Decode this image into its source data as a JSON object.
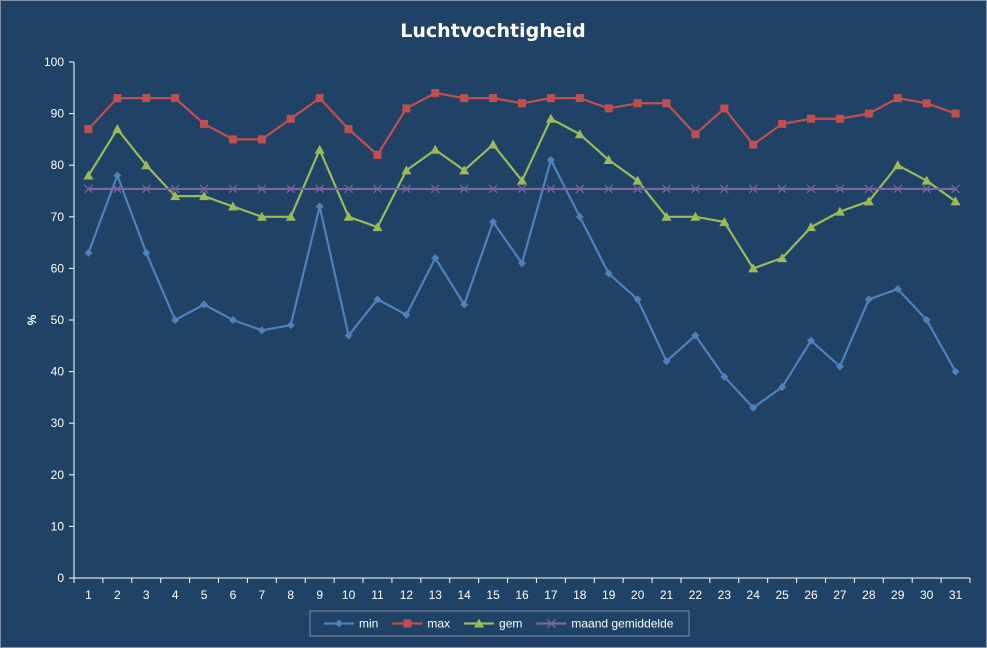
{
  "chart_data": {
    "type": "line",
    "title": "Luchtvochtigheid",
    "xlabel": "",
    "ylabel": "%",
    "ylim": [
      0,
      100
    ],
    "yticks": [
      0,
      10,
      20,
      30,
      40,
      50,
      60,
      70,
      80,
      90,
      100
    ],
    "categories": [
      "1",
      "2",
      "3",
      "4",
      "5",
      "6",
      "7",
      "8",
      "9",
      "10",
      "11",
      "12",
      "13",
      "14",
      "15",
      "16",
      "17",
      "18",
      "19",
      "20",
      "21",
      "22",
      "23",
      "24",
      "25",
      "26",
      "27",
      "28",
      "29",
      "30",
      "31"
    ],
    "grid": false,
    "legend_position": "bottom",
    "series": [
      {
        "name": "min",
        "color": "#4f81bd",
        "marker": "diamond",
        "values": [
          63,
          78,
          63,
          50,
          53,
          50,
          48,
          49,
          72,
          47,
          54,
          51,
          62,
          53,
          69,
          61,
          81,
          70,
          59,
          54,
          42,
          47,
          39,
          33,
          37,
          46,
          41,
          54,
          56,
          50,
          40
        ]
      },
      {
        "name": "max",
        "color": "#c0504d",
        "marker": "square",
        "values": [
          87,
          93,
          93,
          93,
          88,
          85,
          85,
          89,
          93,
          87,
          82,
          91,
          94,
          93,
          93,
          92,
          93,
          93,
          91,
          92,
          92,
          86,
          91,
          84,
          88,
          89,
          89,
          90,
          93,
          92,
          90
        ]
      },
      {
        "name": "gem",
        "color": "#9bbb59",
        "marker": "triangle",
        "values": [
          78,
          87,
          80,
          74,
          74,
          72,
          70,
          70,
          83,
          70,
          68,
          79,
          83,
          79,
          84,
          77,
          89,
          86,
          81,
          77,
          70,
          70,
          69,
          60,
          62,
          68,
          71,
          73,
          80,
          77,
          73
        ]
      },
      {
        "name": "maand gemiddelde",
        "color": "#8064a2",
        "marker": "x",
        "values": [
          75.4,
          75.4,
          75.4,
          75.4,
          75.4,
          75.4,
          75.4,
          75.4,
          75.4,
          75.4,
          75.4,
          75.4,
          75.4,
          75.4,
          75.4,
          75.4,
          75.4,
          75.4,
          75.4,
          75.4,
          75.4,
          75.4,
          75.4,
          75.4,
          75.4,
          75.4,
          75.4,
          75.4,
          75.4,
          75.4,
          75.4
        ]
      }
    ]
  }
}
